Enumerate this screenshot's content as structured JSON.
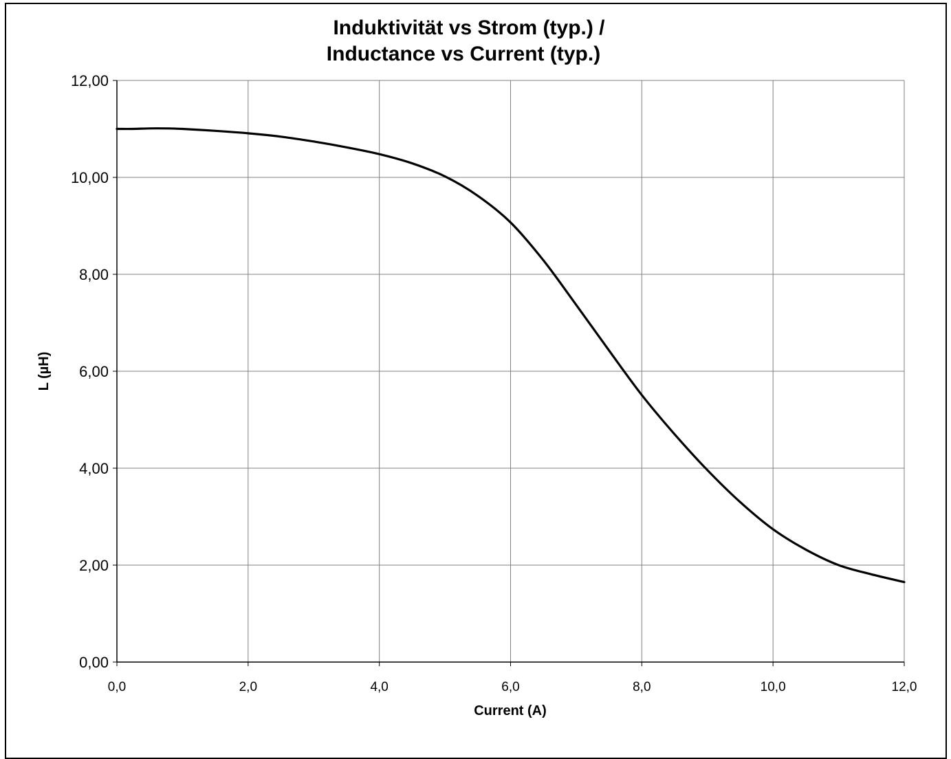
{
  "chart_data": {
    "type": "line",
    "title_line1": "Induktivität vs Strom (typ.) /",
    "title_line2": "Inductance vs Current (typ.)",
    "xlabel": "Current (A)",
    "ylabel": "L (µH)",
    "xlim": [
      0,
      12
    ],
    "ylim": [
      0,
      12
    ],
    "grid": true,
    "legend": "none",
    "x_ticks": [
      "0,0",
      "2,0",
      "4,0",
      "6,0",
      "8,0",
      "10,0",
      "12,0"
    ],
    "y_ticks": [
      "0,00",
      "2,00",
      "4,00",
      "6,00",
      "8,00",
      "10,00",
      "12,00"
    ],
    "series": [
      {
        "color": "#000000",
        "x": [
          0,
          0.25,
          0.5,
          0.75,
          1.0,
          1.5,
          2.0,
          2.5,
          3.0,
          3.5,
          4.0,
          4.5,
          5.0,
          5.5,
          6.0,
          6.5,
          7.0,
          7.5,
          8.0,
          8.5,
          9.0,
          9.5,
          10.0,
          10.5,
          11.0,
          11.5,
          12.0
        ],
        "y": [
          11.0,
          11.0,
          11.01,
          11.01,
          11.0,
          10.96,
          10.91,
          10.84,
          10.74,
          10.62,
          10.48,
          10.29,
          10.02,
          9.62,
          9.07,
          8.29,
          7.37,
          6.43,
          5.51,
          4.7,
          3.96,
          3.3,
          2.74,
          2.32,
          2.0,
          1.81,
          1.65
        ]
      }
    ]
  }
}
